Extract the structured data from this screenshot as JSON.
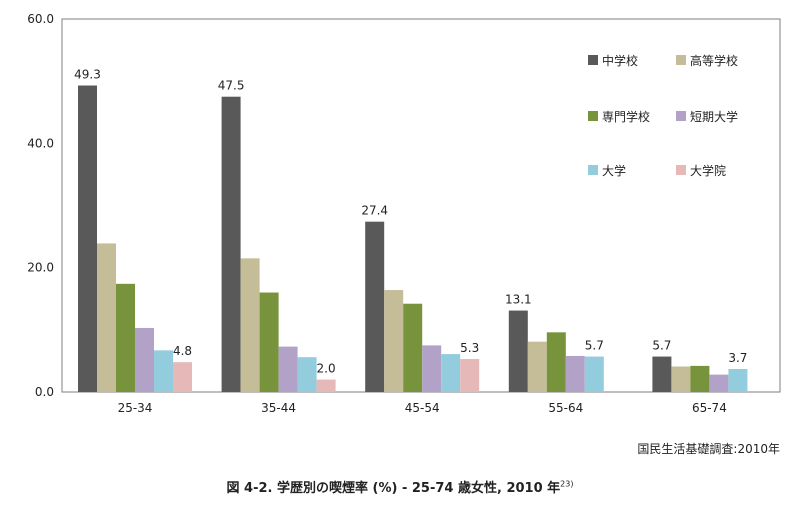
{
  "chart_data": {
    "type": "bar",
    "categories": [
      "25-34",
      "35-44",
      "45-54",
      "55-64",
      "65-74"
    ],
    "ylim": [
      0,
      60
    ],
    "yticks": [
      "0.0",
      "20.0",
      "40.0",
      "60.0"
    ],
    "grid": false,
    "legend_position": "top-right",
    "series": [
      {
        "name": "中学校",
        "color": "#595959",
        "values": [
          49.3,
          47.5,
          27.4,
          13.1,
          5.7
        ],
        "labels": [
          "49.3",
          "47.5",
          "27.4",
          "13.1",
          "5.7"
        ]
      },
      {
        "name": "高等学校",
        "color": "#c4bd97",
        "values": [
          23.9,
          21.5,
          16.4,
          8.1,
          4.1
        ],
        "labels": [
          "",
          "",
          "",
          "",
          ""
        ]
      },
      {
        "name": "専門学校",
        "color": "#77933c",
        "values": [
          17.4,
          16.0,
          14.2,
          9.6,
          4.2
        ],
        "labels": [
          "",
          "",
          "",
          "",
          ""
        ]
      },
      {
        "name": "短期大学",
        "color": "#b3a2c7",
        "values": [
          10.3,
          7.3,
          7.5,
          5.8,
          2.8
        ],
        "labels": [
          "",
          "",
          "",
          "",
          ""
        ]
      },
      {
        "name": "大学",
        "color": "#93cddd",
        "values": [
          6.7,
          5.6,
          6.1,
          5.7,
          3.7
        ],
        "labels": [
          "",
          "",
          "",
          "5.7",
          "3.7"
        ]
      },
      {
        "name": "大学院",
        "color": "#e6b9b8",
        "values": [
          4.8,
          2.0,
          5.3,
          null,
          null
        ],
        "labels": [
          "4.8",
          "2.0",
          "5.3",
          "",
          ""
        ]
      }
    ]
  },
  "source_note": "国民生活基礎調査:2010年",
  "caption": "図 4-2. 学歴別の喫煙率 (%) - 25-74 歳女性, 2010 年",
  "caption_ref": "23)"
}
